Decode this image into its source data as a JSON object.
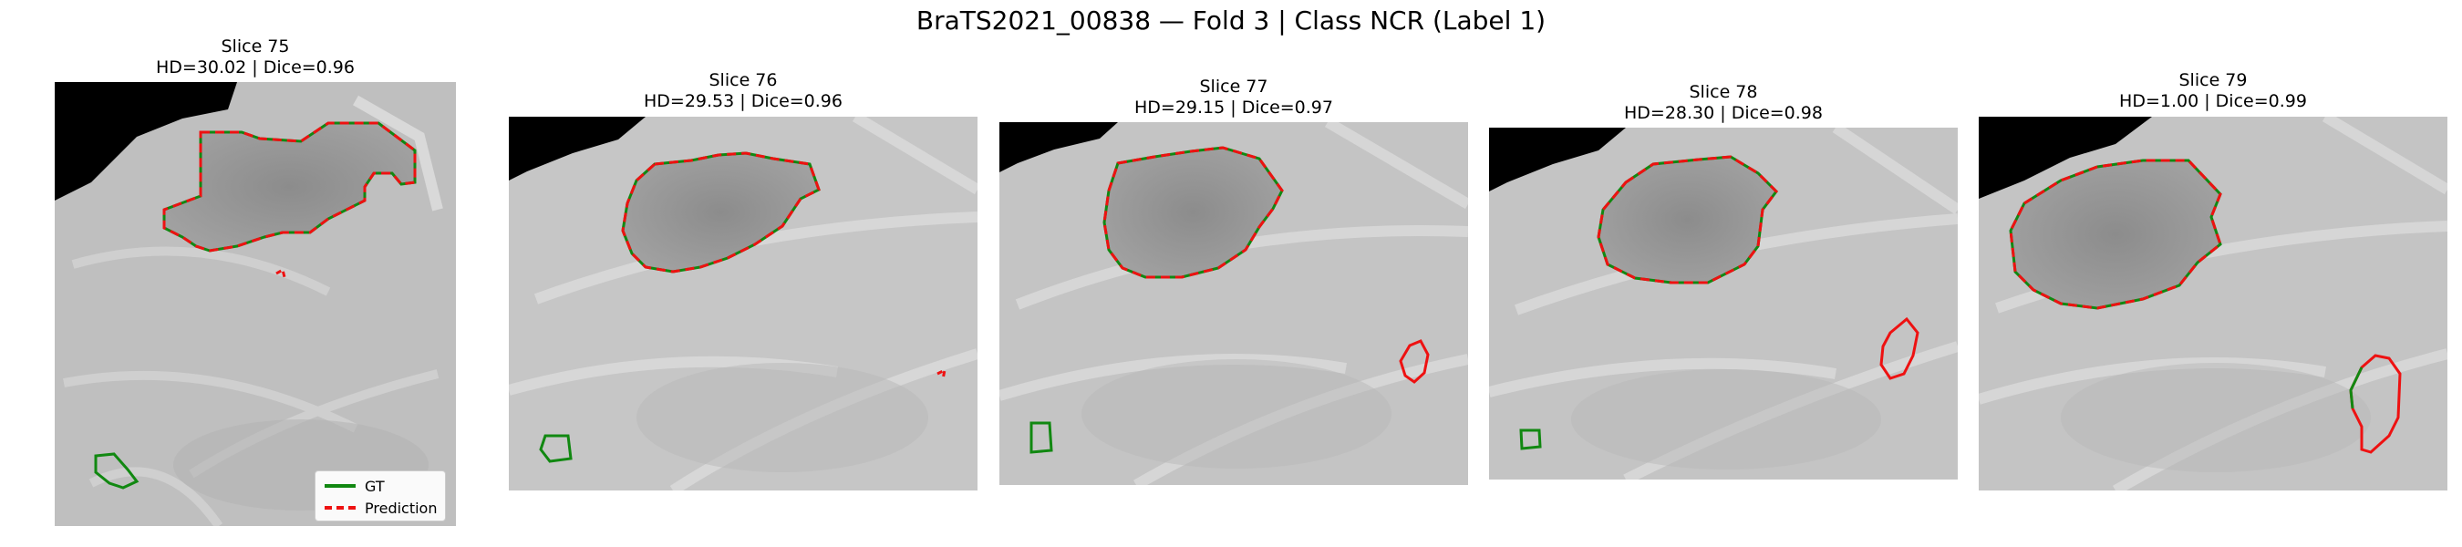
{
  "figure": {
    "title": "BraTS2021_00838 — Fold 3 | Class NCR (Label 1)",
    "legend": {
      "gt": {
        "label": "GT",
        "color": "#118811"
      },
      "prediction": {
        "label": "Prediction",
        "color": "#ee1111"
      }
    },
    "panels": [
      {
        "slice": "Slice 75",
        "metrics": "HD=30.02 | Dice=0.96"
      },
      {
        "slice": "Slice 76",
        "metrics": "HD=29.53 | Dice=0.96"
      },
      {
        "slice": "Slice 77",
        "metrics": "HD=29.15 | Dice=0.97"
      },
      {
        "slice": "Slice 78",
        "metrics": "HD=28.30 | Dice=0.98"
      },
      {
        "slice": "Slice 79",
        "metrics": "HD=1.00 | Dice=0.99"
      }
    ]
  }
}
